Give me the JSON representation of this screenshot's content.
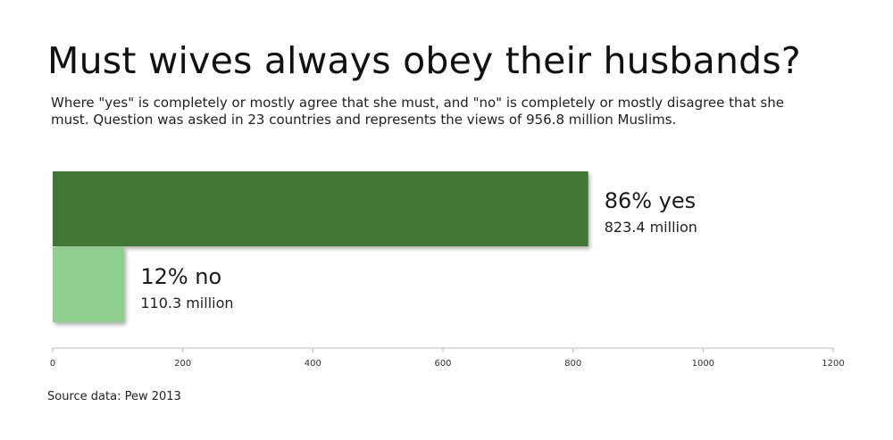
{
  "title": "Must wives always obey their husbands?",
  "subtitle": "Where \"yes\" is completely or mostly agree that she must, and \"no\" is completely or mostly disagree that she must. Question was asked in 23 countries and represents the views of 956.8 million Muslims.",
  "source": "Source data: Pew 2013",
  "colors": {
    "yes": "#3f7736",
    "no": "#8ecf8d",
    "axis": "#bbbbbb"
  },
  "chart_data": {
    "type": "bar",
    "orientation": "horizontal",
    "title": "Must wives always obey their husbands?",
    "xlim": [
      0,
      1200
    ],
    "xticks": [
      0,
      200,
      400,
      600,
      800,
      1000,
      1200
    ],
    "xtick_labels": [
      "0",
      "200",
      "400",
      "600",
      "800",
      "1000",
      "1200"
    ],
    "grid": false,
    "bars": [
      {
        "category": "yes",
        "value": 823.4,
        "label": "86% yes",
        "sublabel": "823.4 million",
        "color": "#3f7736"
      },
      {
        "category": "no",
        "value": 110.3,
        "label": "12% no",
        "sublabel": "110.3 million",
        "color": "#8ecf8d"
      }
    ]
  }
}
